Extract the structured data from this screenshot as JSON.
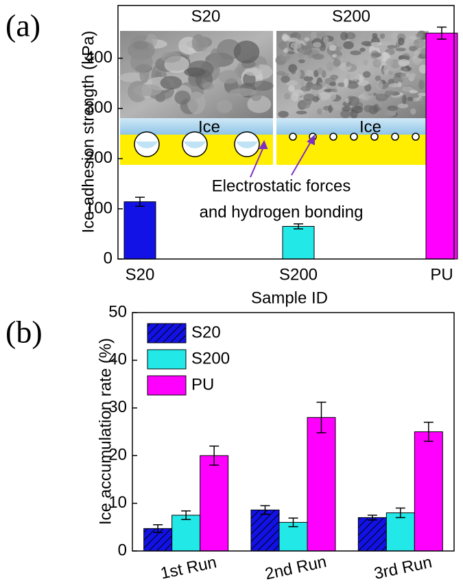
{
  "chart_data": [
    {
      "type": "bar",
      "panel_label": "(a)",
      "x_label": "Sample ID",
      "y_label": "Ice-adhesion strength (kPa)",
      "categories": [
        "S20",
        "S200",
        "PU"
      ],
      "values": [
        114,
        65,
        450
      ],
      "errors": [
        9,
        5,
        12
      ],
      "colors": [
        "#1212e6",
        "#22e8e8",
        "#ff00ff"
      ],
      "ylim": [
        0,
        505
      ],
      "yticks": [
        0,
        100,
        200,
        300,
        400
      ],
      "annotations": [
        "S20",
        "S200",
        "Ice",
        "Ice",
        "Electrostatic forces",
        "and hydrogen bonding"
      ]
    },
    {
      "type": "bar",
      "panel_label": "(b)",
      "y_label": "Ice accumulation rate (%)",
      "categories": [
        "1st Run",
        "2nd Run",
        "3rd Run"
      ],
      "series": [
        {
          "name": "S20",
          "color": "#1212e6",
          "hatch": true,
          "values": [
            4.7,
            8.6,
            7.0
          ],
          "errors": [
            0.8,
            0.9,
            0.5
          ]
        },
        {
          "name": "S200",
          "color": "#22e8e8",
          "values": [
            7.5,
            6.0,
            8.0
          ],
          "errors": [
            0.9,
            0.9,
            1.0
          ]
        },
        {
          "name": "PU",
          "color": "#ff00ff",
          "values": [
            20,
            28,
            25
          ],
          "errors": [
            2.0,
            3.2,
            2.0
          ]
        }
      ],
      "ylim": [
        0,
        50
      ],
      "yticks": [
        0,
        10,
        20,
        30,
        40,
        50
      ],
      "legend": "upper-left"
    }
  ]
}
